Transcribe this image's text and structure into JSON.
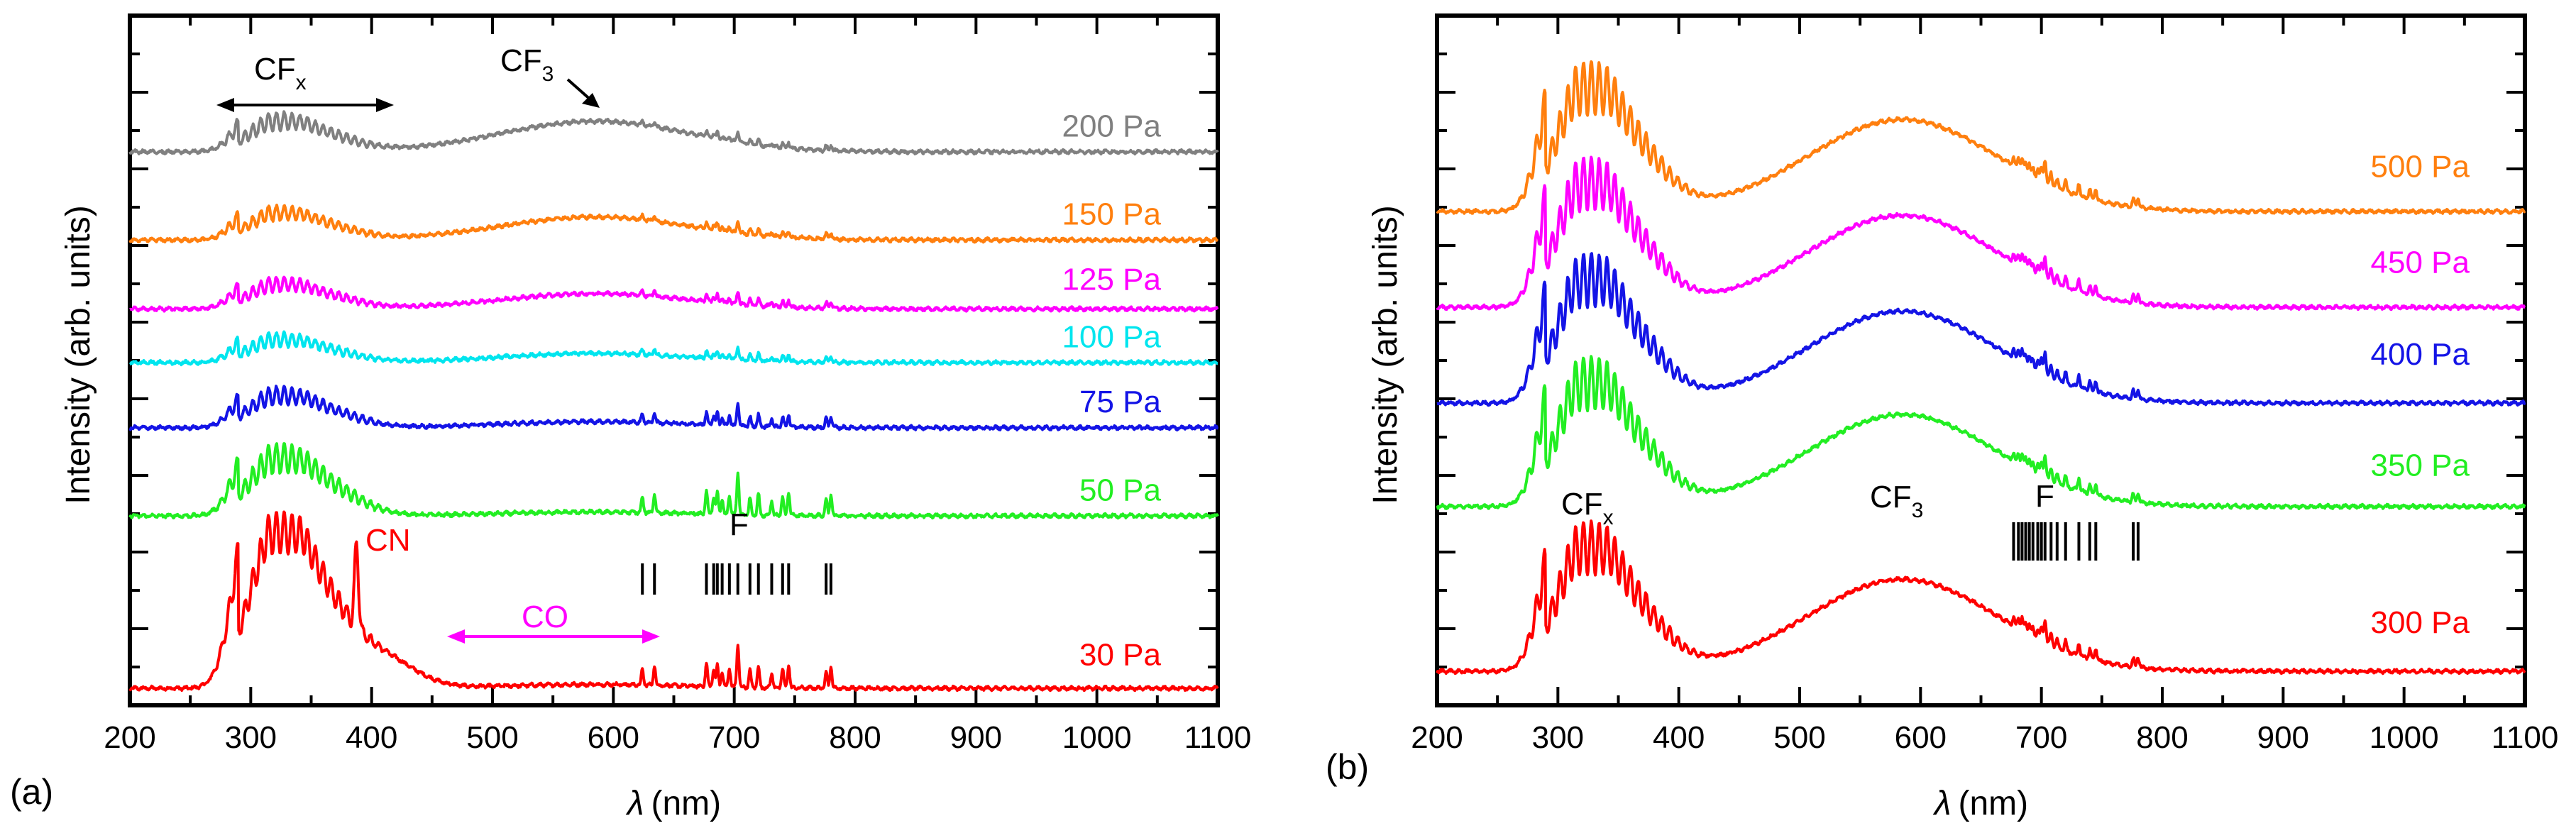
{
  "chart_data": [
    {
      "panel_label": "(a)",
      "type": "line",
      "title": "",
      "xlabel_symbol": "λ",
      "xlabel_unit": "(nm)",
      "ylabel": "Intensity (arb. units)",
      "xlim": [
        200,
        1100
      ],
      "xticks": [
        200,
        300,
        400,
        500,
        600,
        700,
        800,
        900,
        1000,
        1100
      ],
      "yticks_labeled": false,
      "series": [
        {
          "name": "30 Pa",
          "color": "#ff0000",
          "baseline": 0.0,
          "amp_cfx": 1.75,
          "fine_cfx": 0.14,
          "amp_cf3": 0.05,
          "amp_cn": 1.95,
          "amp_f": 0.55,
          "label_y": 0.3
        },
        {
          "name": "50 Pa",
          "color": "#22ee22",
          "baseline": 2.25,
          "amp_cfx": 0.55,
          "fine_cfx": 0.1,
          "amp_cf3": 0.05,
          "amp_cn": 0.0,
          "amp_f": 0.55,
          "label_y": 2.45
        },
        {
          "name": "75 Pa",
          "color": "#1414e6",
          "baseline": 3.4,
          "amp_cfx": 0.3,
          "fine_cfx": 0.06,
          "amp_cf3": 0.08,
          "amp_cn": 0.0,
          "amp_f": 0.3,
          "label_y": 3.6
        },
        {
          "name": "100 Pa",
          "color": "#00e5ee",
          "baseline": 4.25,
          "amp_cfx": 0.2,
          "fine_cfx": 0.05,
          "amp_cf3": 0.12,
          "amp_cn": 0.0,
          "amp_f": 0.18,
          "label_y": 4.45
        },
        {
          "name": "125 Pa",
          "color": "#ff00ff",
          "baseline": 4.95,
          "amp_cfx": 0.22,
          "fine_cfx": 0.05,
          "amp_cf3": 0.2,
          "amp_cn": 0.0,
          "amp_f": 0.18,
          "label_y": 5.2
        },
        {
          "name": "150 Pa",
          "color": "#ff7f0e",
          "baseline": 5.85,
          "amp_cfx": 0.25,
          "fine_cfx": 0.05,
          "amp_cf3": 0.3,
          "amp_cn": 0.0,
          "amp_f": 0.16,
          "label_y": 6.05
        },
        {
          "name": "200 Pa",
          "color": "#808080",
          "baseline": 7.0,
          "amp_cfx": 0.28,
          "fine_cfx": 0.06,
          "amp_cf3": 0.4,
          "amp_cn": 0.0,
          "amp_f": 0.14,
          "label_y": 7.2
        }
      ],
      "annotations": {
        "cfx": {
          "main": "CF",
          "sub": "x",
          "color": "#000000"
        },
        "cf3": {
          "main": "CF",
          "sub": "3",
          "color": "#000000"
        },
        "cn": {
          "text": "CN",
          "color": "#ff0000"
        },
        "co": {
          "text": "CO",
          "color": "#ff00ff"
        },
        "f": {
          "text": "F",
          "color": "#000000"
        }
      },
      "f_line_positions": [
        624,
        634,
        677,
        683,
        686,
        690,
        696,
        703,
        713,
        720,
        731,
        740,
        745,
        776,
        780
      ]
    },
    {
      "panel_label": "(b)",
      "type": "line",
      "title": "",
      "xlabel_symbol": "λ",
      "xlabel_unit": "(nm)",
      "ylabel": "Intensity (arb. units)",
      "xlim": [
        200,
        1100
      ],
      "xticks": [
        200,
        300,
        400,
        500,
        600,
        700,
        800,
        900,
        1000,
        1100
      ],
      "yticks_labeled": false,
      "series": [
        {
          "name": "300 Pa",
          "color": "#ff0000",
          "baseline": 0.0,
          "amp_cfx": 1.25,
          "fine_cfx": 0.18,
          "amp_cf3": 1.2,
          "amp_cn": 0.0,
          "amp_f": 0.3,
          "label_y": 0.5
        },
        {
          "name": "350 Pa",
          "color": "#22ee22",
          "baseline": 2.15,
          "amp_cfx": 1.25,
          "fine_cfx": 0.18,
          "amp_cf3": 1.2,
          "amp_cn": 0.0,
          "amp_f": 0.3,
          "label_y": 2.55
        },
        {
          "name": "400 Pa",
          "color": "#1414e6",
          "baseline": 3.5,
          "amp_cfx": 1.25,
          "fine_cfx": 0.18,
          "amp_cf3": 1.2,
          "amp_cn": 0.0,
          "amp_f": 0.3,
          "label_y": 4.0
        },
        {
          "name": "450 Pa",
          "color": "#ff00ff",
          "baseline": 4.75,
          "amp_cfx": 1.25,
          "fine_cfx": 0.18,
          "amp_cf3": 1.2,
          "amp_cn": 0.0,
          "amp_f": 0.3,
          "label_y": 5.2
        },
        {
          "name": "500 Pa",
          "color": "#ff7f0e",
          "baseline": 6.0,
          "amp_cfx": 1.25,
          "fine_cfx": 0.18,
          "amp_cf3": 1.2,
          "amp_cn": 0.0,
          "amp_f": 0.3,
          "label_y": 6.45
        }
      ],
      "annotations": {
        "cfx": {
          "main": "CF",
          "sub": "x",
          "color": "#000000"
        },
        "cf3": {
          "main": "CF",
          "sub": "3",
          "color": "#000000"
        },
        "f": {
          "text": "F",
          "color": "#000000"
        }
      },
      "f_line_positions": [
        677,
        681,
        684,
        687,
        690,
        693,
        697,
        700,
        703,
        708,
        713,
        720,
        731,
        740,
        745,
        776,
        780
      ]
    }
  ]
}
